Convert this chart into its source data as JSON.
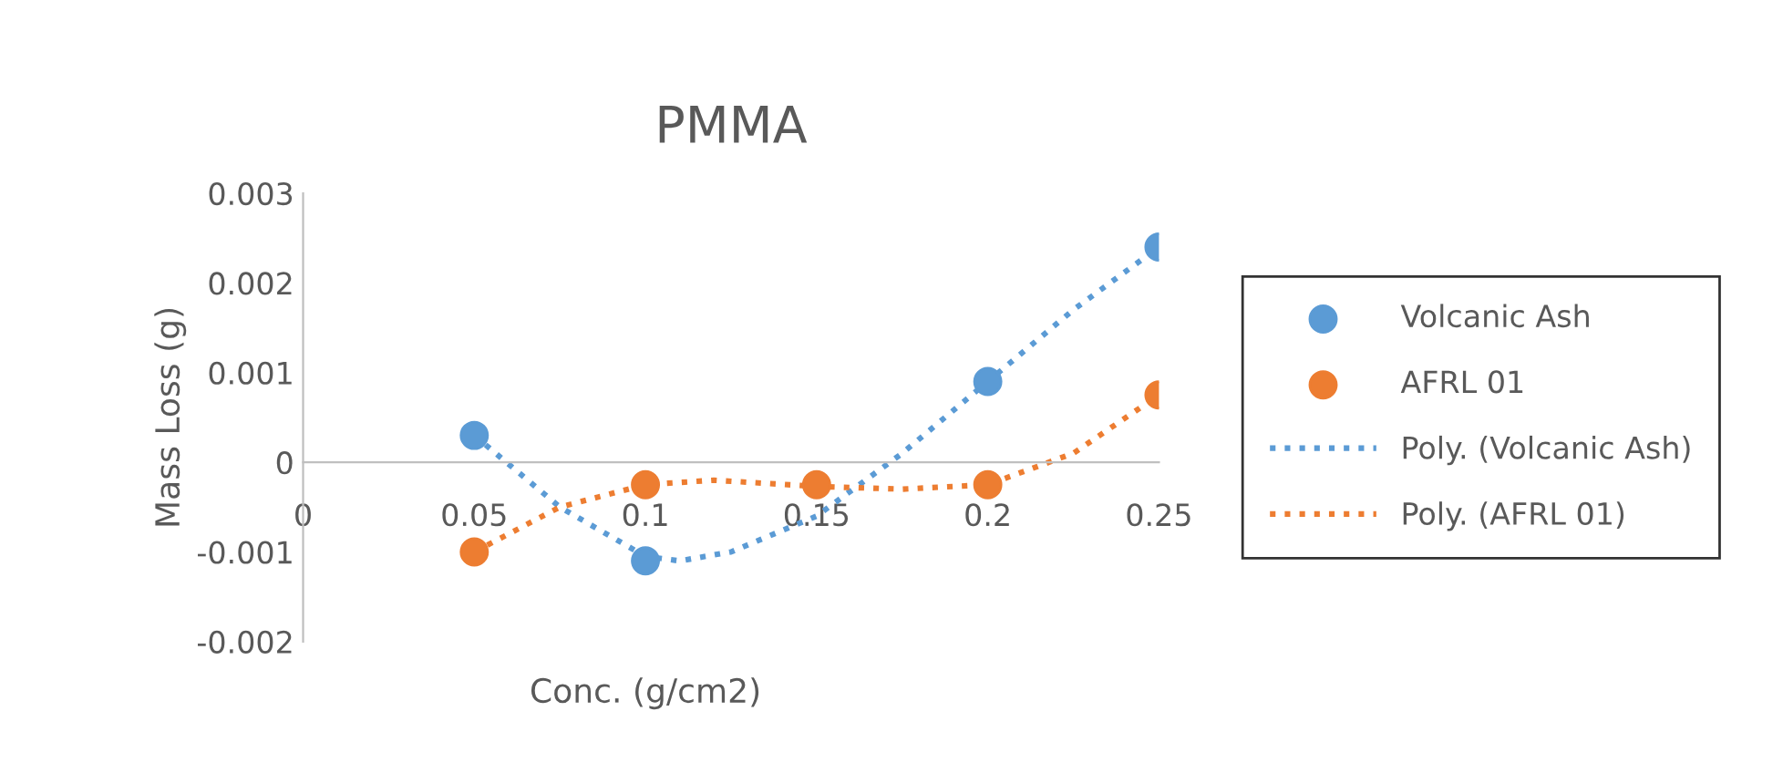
{
  "chart_data": {
    "type": "scatter",
    "title": "PMMA",
    "xlabel": "Conc. (g/cm2)",
    "ylabel": "Mass Loss (g)",
    "xlim": [
      0,
      0.25
    ],
    "xticks": [
      0,
      0.05,
      0.1,
      0.15,
      0.2,
      0.25
    ],
    "ylim": [
      -0.002,
      0.003
    ],
    "yticks": [
      -0.002,
      -0.001,
      0,
      0.001,
      0.002,
      0.003
    ],
    "grid": false,
    "legend": "right",
    "series": [
      {
        "name": "Volcanic Ash",
        "marker": "circle",
        "color": "#5b9bd5",
        "x": [
          0.05,
          0.1,
          0.2,
          0.25
        ],
        "values": [
          0.0003,
          -0.0011,
          0.0009,
          0.0024
        ]
      },
      {
        "name": "AFRL 01",
        "marker": "circle",
        "color": "#ed7d31",
        "x": [
          0.05,
          0.1,
          0.15,
          0.2,
          0.25
        ],
        "values": [
          -0.001,
          -0.00025,
          -0.00025,
          -0.00025,
          0.00075
        ]
      },
      {
        "name": "Poly. (Volcanic Ash)",
        "type": "line",
        "marker": "none",
        "line_style": "dotted",
        "color": "#5b9bd5",
        "x": [
          0.05,
          0.075,
          0.1,
          0.11,
          0.125,
          0.15,
          0.175,
          0.2,
          0.225,
          0.25
        ],
        "values": [
          0.0003,
          -0.0005,
          -0.00105,
          -0.0011,
          -0.001,
          -0.0006,
          0.0001,
          0.0009,
          0.0017,
          0.0024
        ]
      },
      {
        "name": "Poly. (AFRL 01)",
        "type": "line",
        "marker": "none",
        "line_style": "dotted",
        "color": "#ed7d31",
        "x": [
          0.05,
          0.075,
          0.1,
          0.12,
          0.15,
          0.175,
          0.2,
          0.225,
          0.25
        ],
        "values": [
          -0.001,
          -0.0005,
          -0.00025,
          -0.0002,
          -0.00027,
          -0.0003,
          -0.00025,
          0.0001,
          0.00075
        ]
      }
    ]
  }
}
